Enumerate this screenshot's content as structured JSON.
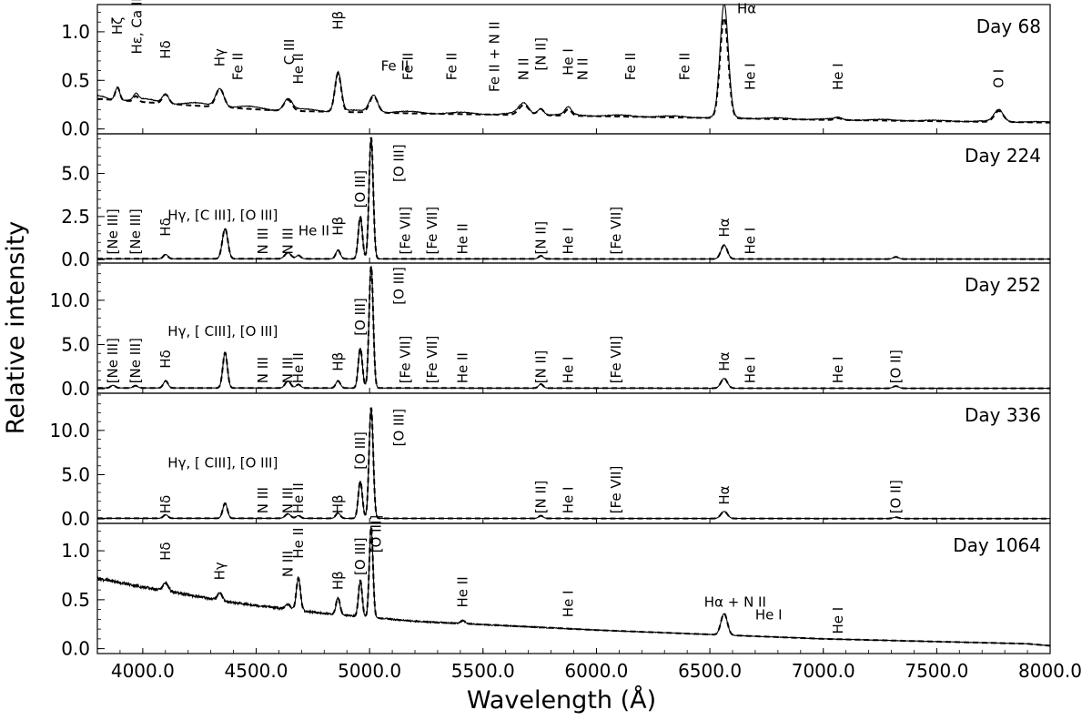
{
  "chart_data": {
    "type": "line",
    "xlabel": "Wavelength (Å)",
    "ylabel": "Relative intensity",
    "xlim": [
      3800,
      8000
    ],
    "x_ticks": [
      {
        "v": 4000,
        "label": "4000.0"
      },
      {
        "v": 4500,
        "label": "4500.0"
      },
      {
        "v": 5000,
        "label": "5000.0"
      },
      {
        "v": 5500,
        "label": "5500.0"
      },
      {
        "v": 6000,
        "label": "6000.0"
      },
      {
        "v": 6500,
        "label": "6500.0"
      },
      {
        "v": 7000,
        "label": "7000.0"
      },
      {
        "v": 7500,
        "label": "7500.0"
      },
      {
        "v": 8000,
        "label": "8000.0"
      }
    ],
    "series_styles": [
      "solid (observed)",
      "dashed (model)"
    ],
    "panels": [
      {
        "day": "Day 68",
        "ylim": [
          -0.05,
          1.28
        ],
        "y_ticks": [
          {
            "v": 0,
            "label": "0.0"
          },
          {
            "v": 0.5,
            "label": "0.5"
          },
          {
            "v": 1.0,
            "label": "1.0"
          }
        ],
        "baseline": [
          [
            3800,
            0.33
          ],
          [
            4200,
            0.26
          ],
          [
            4600,
            0.2
          ],
          [
            5200,
            0.17
          ],
          [
            6000,
            0.14
          ],
          [
            7000,
            0.1
          ],
          [
            8000,
            0.07
          ]
        ],
        "peaks": [
          {
            "x": 3889,
            "h": 0.14,
            "w": 10
          },
          {
            "x": 3970,
            "h": 0.06,
            "w": 10
          },
          {
            "x": 4101,
            "h": 0.1,
            "w": 14
          },
          {
            "x": 4340,
            "h": 0.2,
            "w": 18
          },
          {
            "x": 4640,
            "h": 0.12,
            "w": 18
          },
          {
            "x": 4861,
            "h": 0.42,
            "w": 14
          },
          {
            "x": 5018,
            "h": 0.18,
            "w": 18
          },
          {
            "x": 5680,
            "h": 0.11,
            "w": 22
          },
          {
            "x": 5754,
            "h": 0.07,
            "w": 14
          },
          {
            "x": 5876,
            "h": 0.07,
            "w": 14
          },
          {
            "x": 6563,
            "h": 1.1,
            "w": 18
          },
          {
            "x": 7065,
            "h": 0.02,
            "w": 14
          },
          {
            "x": 7774,
            "h": 0.12,
            "w": 20
          }
        ],
        "labels": [
          {
            "text": "Hζ",
            "x": 3889,
            "y": 0.97,
            "rot": -90
          },
          {
            "text": "Hε, Ca II",
            "x": 3975,
            "y": 0.77,
            "rot": -90
          },
          {
            "text": "Hδ",
            "x": 4101,
            "y": 0.72,
            "rot": -90
          },
          {
            "text": "Hγ",
            "x": 4340,
            "y": 0.64,
            "rot": -90
          },
          {
            "text": "Fe II",
            "x": 4420,
            "y": 0.5,
            "rot": -90
          },
          {
            "text": "C III",
            "x": 4647,
            "y": 0.66,
            "rot": -90
          },
          {
            "text": "He II",
            "x": 4686,
            "y": 0.46,
            "rot": -90
          },
          {
            "text": "Hβ",
            "x": 4861,
            "y": 1.02,
            "rot": -90
          },
          {
            "text": "Fe II",
            "x": 5050,
            "y": 0.6,
            "rot": 0
          },
          {
            "text": "Fe II",
            "x": 5169,
            "y": 0.5,
            "rot": -90
          },
          {
            "text": "Fe II",
            "x": 5362,
            "y": 0.5,
            "rot": -90
          },
          {
            "text": "Fe II + N II",
            "x": 5550,
            "y": 0.38,
            "rot": -90
          },
          {
            "text": "N II",
            "x": 5679,
            "y": 0.5,
            "rot": -90
          },
          {
            "text": "[N II]",
            "x": 5755,
            "y": 0.6,
            "rot": -90
          },
          {
            "text": "He I",
            "x": 5876,
            "y": 0.55,
            "rot": -90
          },
          {
            "text": "N II",
            "x": 5940,
            "y": 0.5,
            "rot": -90
          },
          {
            "text": "Fe II",
            "x": 6150,
            "y": 0.5,
            "rot": -90
          },
          {
            "text": "Fe II",
            "x": 6390,
            "y": 0.5,
            "rot": -90
          },
          {
            "text": "Hα",
            "x": 6620,
            "y": 1.19,
            "rot": 0
          },
          {
            "text": "He I",
            "x": 6678,
            "y": 0.4,
            "rot": -90
          },
          {
            "text": "He I",
            "x": 7065,
            "y": 0.4,
            "rot": -90
          },
          {
            "text": "O I",
            "x": 7774,
            "y": 0.42,
            "rot": -90
          }
        ]
      },
      {
        "day": "Day 224",
        "ylim": [
          -0.2,
          7.3
        ],
        "y_ticks": [
          {
            "v": 0,
            "label": "0.0"
          },
          {
            "v": 2.5,
            "label": "2.5"
          },
          {
            "v": 5,
            "label": "5.0"
          }
        ],
        "baseline": [
          [
            3800,
            0.05
          ],
          [
            8000,
            0.03
          ]
        ],
        "peaks": [
          {
            "x": 4101,
            "h": 0.25,
            "w": 10
          },
          {
            "x": 4363,
            "h": 1.75,
            "w": 12
          },
          {
            "x": 4640,
            "h": 0.35,
            "w": 14
          },
          {
            "x": 4686,
            "h": 0.2,
            "w": 10
          },
          {
            "x": 4861,
            "h": 0.5,
            "w": 10
          },
          {
            "x": 4959,
            "h": 2.45,
            "w": 9
          },
          {
            "x": 5007,
            "h": 7.05,
            "w": 9
          },
          {
            "x": 5755,
            "h": 0.18,
            "w": 10
          },
          {
            "x": 6563,
            "h": 0.8,
            "w": 14
          },
          {
            "x": 7320,
            "h": 0.12,
            "w": 12
          }
        ],
        "labels": [
          {
            "text": "[Ne III]",
            "x": 3869,
            "y": 0.3,
            "rot": -90
          },
          {
            "text": "[Ne III]",
            "x": 3968,
            "y": 0.3,
            "rot": -90
          },
          {
            "text": "Hδ",
            "x": 4101,
            "y": 1.35,
            "rot": -90
          },
          {
            "text": "Hγ, [C III], [O III]",
            "x": 4110,
            "y": 2.3,
            "rot": 0
          },
          {
            "text": "N III",
            "x": 4530,
            "y": 0.3,
            "rot": -90
          },
          {
            "text": "N III",
            "x": 4640,
            "y": 0.3,
            "rot": -90
          },
          {
            "text": "He II",
            "x": 4686,
            "y": 1.4,
            "rot": 0
          },
          {
            "text": "Hβ",
            "x": 4861,
            "y": 1.4,
            "rot": -90
          },
          {
            "text": "[O III]",
            "x": 4959,
            "y": 3.0,
            "rot": -90
          },
          {
            "text": "[O III]",
            "x": 5130,
            "y": 4.5,
            "rot": -90
          },
          {
            "text": "[Fe VII]",
            "x": 5158,
            "y": 0.3,
            "rot": -90
          },
          {
            "text": "[Fe VII]",
            "x": 5276,
            "y": 0.3,
            "rot": -90
          },
          {
            "text": "He II",
            "x": 5411,
            "y": 0.3,
            "rot": -90
          },
          {
            "text": "[N II]",
            "x": 5755,
            "y": 0.3,
            "rot": -90
          },
          {
            "text": "He I",
            "x": 5876,
            "y": 0.3,
            "rot": -90
          },
          {
            "text": "[Fe VII]",
            "x": 6087,
            "y": 0.3,
            "rot": -90
          },
          {
            "text": "Hα",
            "x": 6563,
            "y": 1.3,
            "rot": -90
          },
          {
            "text": "He I",
            "x": 6678,
            "y": 0.3,
            "rot": -90
          }
        ]
      },
      {
        "day": "Day 252",
        "ylim": [
          -0.5,
          14.2
        ],
        "y_ticks": [
          {
            "v": 0,
            "label": "0.0"
          },
          {
            "v": 5,
            "label": "5.0"
          },
          {
            "v": 10,
            "label": "10.0"
          }
        ],
        "baseline": [
          [
            3800,
            0.1
          ],
          [
            8000,
            0.05
          ]
        ],
        "peaks": [
          {
            "x": 3869,
            "h": 0.3,
            "w": 10
          },
          {
            "x": 3968,
            "h": 0.25,
            "w": 10
          },
          {
            "x": 4101,
            "h": 0.8,
            "w": 10
          },
          {
            "x": 4363,
            "h": 4.0,
            "w": 10
          },
          {
            "x": 4640,
            "h": 0.8,
            "w": 12
          },
          {
            "x": 4686,
            "h": 0.4,
            "w": 10
          },
          {
            "x": 4861,
            "h": 0.8,
            "w": 10
          },
          {
            "x": 4959,
            "h": 4.5,
            "w": 9
          },
          {
            "x": 5007,
            "h": 13.8,
            "w": 9
          },
          {
            "x": 5755,
            "h": 0.45,
            "w": 10
          },
          {
            "x": 6563,
            "h": 1.1,
            "w": 14
          },
          {
            "x": 7320,
            "h": 0.25,
            "w": 12
          }
        ],
        "labels": [
          {
            "text": "[Ne III]",
            "x": 3869,
            "y": 0.6,
            "rot": -90
          },
          {
            "text": "[Ne III]",
            "x": 3968,
            "y": 0.6,
            "rot": -90
          },
          {
            "text": "Hδ",
            "x": 4101,
            "y": 2.3,
            "rot": -90
          },
          {
            "text": "Hγ, [ CIII], [O III]",
            "x": 4110,
            "y": 6.0,
            "rot": 0
          },
          {
            "text": "N III",
            "x": 4530,
            "y": 0.6,
            "rot": -90
          },
          {
            "text": "N III",
            "x": 4640,
            "y": 0.6,
            "rot": -90
          },
          {
            "text": "He II",
            "x": 4686,
            "y": 0.6,
            "rot": -90
          },
          {
            "text": "Hβ",
            "x": 4861,
            "y": 2.0,
            "rot": -90
          },
          {
            "text": "[O III]",
            "x": 4959,
            "y": 6.0,
            "rot": -90
          },
          {
            "text": "[O III]",
            "x": 5130,
            "y": 9.5,
            "rot": -90
          },
          {
            "text": "[Fe VII]",
            "x": 5158,
            "y": 0.6,
            "rot": -90
          },
          {
            "text": "[Fe VII]",
            "x": 5276,
            "y": 0.6,
            "rot": -90
          },
          {
            "text": "He II",
            "x": 5411,
            "y": 0.6,
            "rot": -90
          },
          {
            "text": "[N II]",
            "x": 5755,
            "y": 0.6,
            "rot": -90
          },
          {
            "text": "He I",
            "x": 5876,
            "y": 0.6,
            "rot": -90
          },
          {
            "text": "[Fe VII]",
            "x": 6087,
            "y": 0.6,
            "rot": -90
          },
          {
            "text": "Hα",
            "x": 6563,
            "y": 2.0,
            "rot": -90
          },
          {
            "text": "He I",
            "x": 6678,
            "y": 0.6,
            "rot": -90
          },
          {
            "text": "He I",
            "x": 7065,
            "y": 0.6,
            "rot": -90
          },
          {
            "text": "[O II]",
            "x": 7320,
            "y": 0.6,
            "rot": -90
          }
        ]
      },
      {
        "day": "Day 336",
        "ylim": [
          -0.5,
          14.2
        ],
        "y_ticks": [
          {
            "v": 0,
            "label": "0.0"
          },
          {
            "v": 5,
            "label": "5.0"
          },
          {
            "v": 10,
            "label": "10.0"
          }
        ],
        "baseline": [
          [
            3800,
            0.08
          ],
          [
            8000,
            0.04
          ]
        ],
        "peaks": [
          {
            "x": 4101,
            "h": 0.4,
            "w": 10
          },
          {
            "x": 4363,
            "h": 1.7,
            "w": 10
          },
          {
            "x": 4640,
            "h": 0.5,
            "w": 12
          },
          {
            "x": 4686,
            "h": 0.3,
            "w": 10
          },
          {
            "x": 4861,
            "h": 0.6,
            "w": 10
          },
          {
            "x": 4959,
            "h": 4.2,
            "w": 9
          },
          {
            "x": 5007,
            "h": 12.5,
            "w": 9
          },
          {
            "x": 5755,
            "h": 0.3,
            "w": 10
          },
          {
            "x": 6563,
            "h": 0.8,
            "w": 14
          },
          {
            "x": 7320,
            "h": 0.15,
            "w": 12
          }
        ],
        "labels": [
          {
            "text": "Hδ",
            "x": 4101,
            "y": 0.6,
            "rot": -90
          },
          {
            "text": "Hγ, [ CIII], [O III]",
            "x": 4110,
            "y": 5.8,
            "rot": 0
          },
          {
            "text": "N III",
            "x": 4530,
            "y": 0.6,
            "rot": -90
          },
          {
            "text": "N III",
            "x": 4640,
            "y": 0.6,
            "rot": -90
          },
          {
            "text": "He II",
            "x": 4686,
            "y": 0.6,
            "rot": -90
          },
          {
            "text": "Hβ",
            "x": 4861,
            "y": 0.6,
            "rot": -90
          },
          {
            "text": "[O III]",
            "x": 4959,
            "y": 5.6,
            "rot": -90
          },
          {
            "text": "[O III]",
            "x": 5130,
            "y": 8.2,
            "rot": -90
          },
          {
            "text": "[N II]",
            "x": 5755,
            "y": 0.6,
            "rot": -90
          },
          {
            "text": "He I",
            "x": 5876,
            "y": 0.6,
            "rot": -90
          },
          {
            "text": "[Fe VII]",
            "x": 6087,
            "y": 0.6,
            "rot": -90
          },
          {
            "text": "Hα",
            "x": 6563,
            "y": 1.6,
            "rot": -90
          },
          {
            "text": "[O II]",
            "x": 7320,
            "y": 0.6,
            "rot": -90
          }
        ]
      },
      {
        "day": "Day 1064",
        "ylim": [
          -0.05,
          1.28
        ],
        "y_ticks": [
          {
            "v": 0,
            "label": "0.0"
          },
          {
            "v": 0.5,
            "label": "0.5"
          },
          {
            "v": 1.0,
            "label": "1.0"
          }
        ],
        "baseline": [
          [
            3800,
            0.72
          ],
          [
            4000,
            0.63
          ],
          [
            4400,
            0.47
          ],
          [
            4800,
            0.36
          ],
          [
            5200,
            0.28
          ],
          [
            6000,
            0.19
          ],
          [
            7000,
            0.1
          ],
          [
            7900,
            0.05
          ],
          [
            8000,
            0.03
          ]
        ],
        "peaks": [
          {
            "x": 4101,
            "h": 0.08,
            "w": 12
          },
          {
            "x": 4340,
            "h": 0.08,
            "w": 10
          },
          {
            "x": 4640,
            "h": 0.05,
            "w": 10
          },
          {
            "x": 4686,
            "h": 0.33,
            "w": 9
          },
          {
            "x": 4861,
            "h": 0.17,
            "w": 9
          },
          {
            "x": 4959,
            "h": 0.37,
            "w": 8
          },
          {
            "x": 5007,
            "h": 0.93,
            "w": 8
          },
          {
            "x": 5411,
            "h": 0.03,
            "w": 10
          },
          {
            "x": 6563,
            "h": 0.22,
            "w": 14
          }
        ],
        "labels": [
          {
            "text": "Hδ",
            "x": 4101,
            "y": 0.9,
            "rot": -90
          },
          {
            "text": "Hγ",
            "x": 4340,
            "y": 0.7,
            "rot": -90
          },
          {
            "text": "N III",
            "x": 4640,
            "y": 0.73,
            "rot": -90
          },
          {
            "text": "He II",
            "x": 4686,
            "y": 0.92,
            "rot": -90
          },
          {
            "text": "Hβ",
            "x": 4861,
            "y": 0.6,
            "rot": -90
          },
          {
            "text": "[O III]",
            "x": 4959,
            "y": 0.75,
            "rot": -90
          },
          {
            "text": "[O III]",
            "x": 5030,
            "y": 0.98,
            "rot": -90
          },
          {
            "text": "He II",
            "x": 5411,
            "y": 0.42,
            "rot": -90
          },
          {
            "text": "He I",
            "x": 5876,
            "y": 0.32,
            "rot": -90
          },
          {
            "text": "Hα + N II",
            "x": 6475,
            "y": 0.43,
            "rot": 0
          },
          {
            "text": "He I",
            "x": 6700,
            "y": 0.3,
            "rot": 0
          },
          {
            "text": "He I",
            "x": 7065,
            "y": 0.15,
            "rot": -90
          }
        ]
      }
    ]
  }
}
